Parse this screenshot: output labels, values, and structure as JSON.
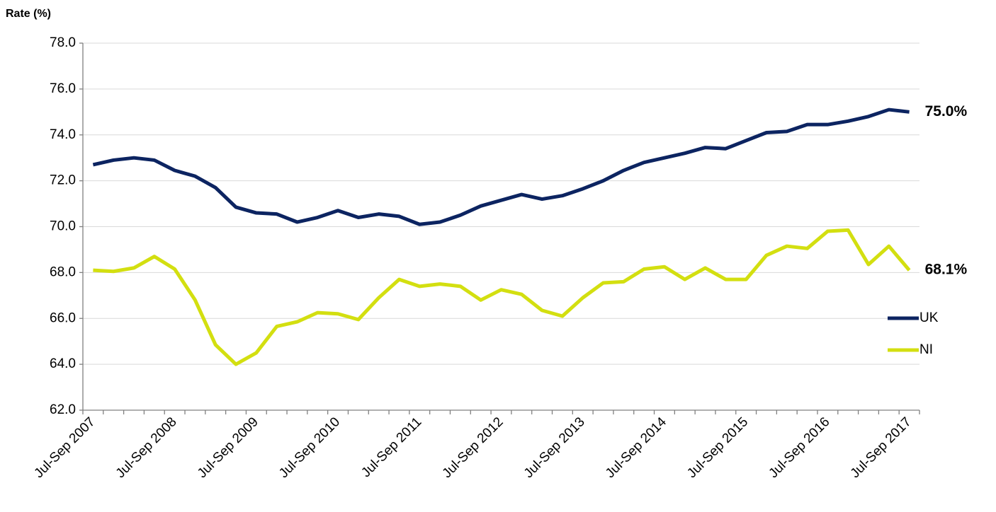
{
  "chart_data": {
    "type": "line",
    "y_label": "Rate (%)",
    "categories": [
      "Jul-Sep 2007",
      null,
      null,
      null,
      "Jul-Sep 2008",
      null,
      null,
      null,
      "Jul-Sep 2009",
      null,
      null,
      null,
      "Jul-Sep 2010",
      null,
      null,
      null,
      "Jul-Sep 2011",
      null,
      null,
      null,
      "Jul-Sep 2012",
      null,
      null,
      null,
      "Jul-Sep 2013",
      null,
      null,
      null,
      "Jul-Sep 2014",
      null,
      null,
      null,
      "Jul-Sep 2015",
      null,
      null,
      null,
      "Jul-Sep 2016",
      null,
      null,
      null,
      "Jul-Sep 2017"
    ],
    "series": [
      {
        "name": "UK",
        "color": "#0c2461",
        "values": [
          72.7,
          72.9,
          73.0,
          72.9,
          72.45,
          72.2,
          71.7,
          70.85,
          70.6,
          70.55,
          70.2,
          70.4,
          70.7,
          70.4,
          70.55,
          70.45,
          70.1,
          70.2,
          70.5,
          70.9,
          71.15,
          71.4,
          71.2,
          71.35,
          71.65,
          72.0,
          72.45,
          72.8,
          73.0,
          73.2,
          73.45,
          73.4,
          73.75,
          74.1,
          74.15,
          74.45,
          74.45,
          74.6,
          74.8,
          75.1,
          75.0
        ],
        "value_labels": [
          null,
          null,
          null,
          null,
          null,
          null,
          null,
          null,
          null,
          null,
          null,
          null,
          null,
          null,
          null,
          null,
          null,
          null,
          null,
          null,
          null,
          null,
          null,
          null,
          null,
          null,
          null,
          null,
          null,
          null,
          null,
          null,
          null,
          null,
          null,
          null,
          null,
          null,
          null,
          null,
          "75.0%"
        ]
      },
      {
        "name": "NI",
        "color": "#d3df10",
        "values": [
          68.1,
          68.05,
          68.2,
          68.7,
          68.15,
          66.8,
          64.85,
          64.0,
          64.5,
          65.65,
          65.85,
          66.25,
          66.2,
          65.95,
          66.9,
          67.7,
          67.4,
          67.5,
          67.4,
          66.8,
          67.25,
          67.05,
          66.35,
          66.1,
          66.9,
          67.55,
          67.6,
          68.15,
          68.25,
          67.7,
          68.2,
          67.7,
          67.7,
          68.75,
          69.15,
          69.05,
          69.8,
          69.85,
          68.35,
          69.15,
          68.1
        ],
        "value_labels": [
          null,
          null,
          null,
          null,
          null,
          null,
          null,
          null,
          null,
          null,
          null,
          null,
          null,
          null,
          null,
          null,
          null,
          null,
          null,
          null,
          null,
          null,
          null,
          null,
          null,
          null,
          null,
          null,
          null,
          null,
          null,
          null,
          null,
          null,
          null,
          null,
          null,
          null,
          null,
          null,
          "68.1%"
        ]
      }
    ],
    "ylim": [
      62,
      78
    ],
    "yticks": [
      {
        "value": 62,
        "label": "62.0"
      },
      {
        "value": 64,
        "label": "64.0"
      },
      {
        "value": 66,
        "label": "66.0"
      },
      {
        "value": 68,
        "label": "68.0"
      },
      {
        "value": 70,
        "label": "70.0"
      },
      {
        "value": 72,
        "label": "72.0"
      },
      {
        "value": 74,
        "label": "74.0"
      },
      {
        "value": 76,
        "label": "76.0"
      },
      {
        "value": 78,
        "label": "78.0"
      }
    ],
    "grid": true,
    "legend": "right"
  }
}
